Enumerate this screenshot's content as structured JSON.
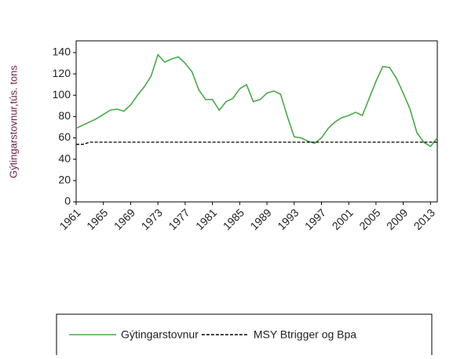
{
  "chart_data": {
    "type": "line",
    "y_label": "Gýtingarstovnur,tús. tons",
    "x": [
      1961,
      1962,
      1963,
      1964,
      1965,
      1966,
      1967,
      1968,
      1969,
      1970,
      1971,
      1972,
      1973,
      1974,
      1975,
      1976,
      1977,
      1978,
      1979,
      1980,
      1981,
      1982,
      1983,
      1984,
      1985,
      1986,
      1987,
      1988,
      1989,
      1990,
      1991,
      1992,
      1993,
      1994,
      1995,
      1996,
      1997,
      1998,
      1999,
      2000,
      2001,
      2002,
      2003,
      2004,
      2005,
      2006,
      2007,
      2008,
      2009,
      2010,
      2011,
      2012,
      2013,
      2014
    ],
    "series": [
      {
        "name": "Gýtingarstovnur",
        "color": "#4aa84a",
        "dashed": false,
        "values": [
          69,
          72,
          75,
          78,
          82,
          86,
          87,
          85,
          91,
          100,
          108,
          118,
          138,
          131,
          134,
          136,
          130,
          122,
          105,
          96,
          96,
          86,
          94,
          97,
          106,
          110,
          94,
          96,
          102,
          104,
          101,
          80,
          61,
          60,
          57,
          55,
          60,
          69,
          75,
          79,
          81,
          84,
          81,
          97,
          113,
          127,
          126,
          116,
          102,
          87,
          65,
          56,
          52,
          60
        ]
      },
      {
        "name": "MSY Btrigger og Bpa",
        "color": "#000000",
        "dashed": true,
        "values": [
          54,
          54,
          56,
          56,
          56,
          56,
          56,
          56,
          56,
          56,
          56,
          56,
          56,
          56,
          56,
          56,
          56,
          56,
          56,
          56,
          56,
          56,
          56,
          56,
          56,
          56,
          56,
          56,
          56,
          56,
          56,
          56,
          56,
          56,
          56,
          56,
          56,
          56,
          56,
          56,
          56,
          56,
          56,
          56,
          56,
          56,
          56,
          56,
          56,
          56,
          56,
          56,
          56,
          56
        ]
      }
    ],
    "xlim": [
      1961,
      2014
    ],
    "xticks": [
      1961,
      1965,
      1969,
      1973,
      1977,
      1981,
      1985,
      1989,
      1993,
      1997,
      2001,
      2005,
      2009,
      2013
    ],
    "ylim": [
      0,
      151
    ],
    "yticks": [
      0,
      20,
      40,
      60,
      80,
      100,
      120,
      140
    ]
  }
}
